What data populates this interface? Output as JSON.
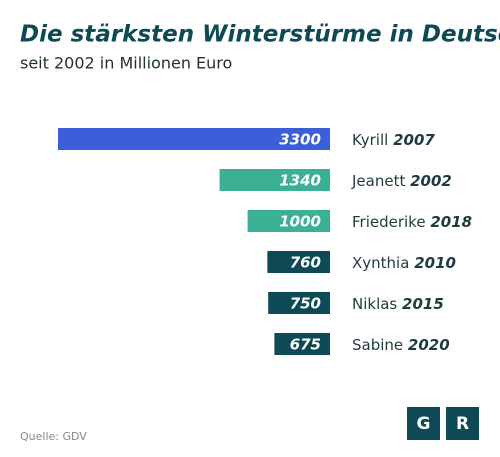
{
  "chart_data": {
    "type": "bar",
    "orientation": "horizontal",
    "title": "Die stärksten Winterstürme in Deutschland",
    "subtitle": "seit 2002 in Millionen Euro",
    "categories": [
      "Kyrill",
      "Jeanett",
      "Friederike",
      "Xynthia",
      "Niklas",
      "Sabine"
    ],
    "years": [
      "2007",
      "2002",
      "2018",
      "2010",
      "2015",
      "2020"
    ],
    "values": [
      3300,
      1340,
      1000,
      760,
      750,
      675
    ],
    "colors": [
      "#3a5fd9",
      "#3bb094",
      "#3bb094",
      "#0e4a55",
      "#0e4a55",
      "#0e4a55"
    ],
    "source": "Quelle: GDV",
    "logo": [
      "G",
      "R"
    ]
  }
}
